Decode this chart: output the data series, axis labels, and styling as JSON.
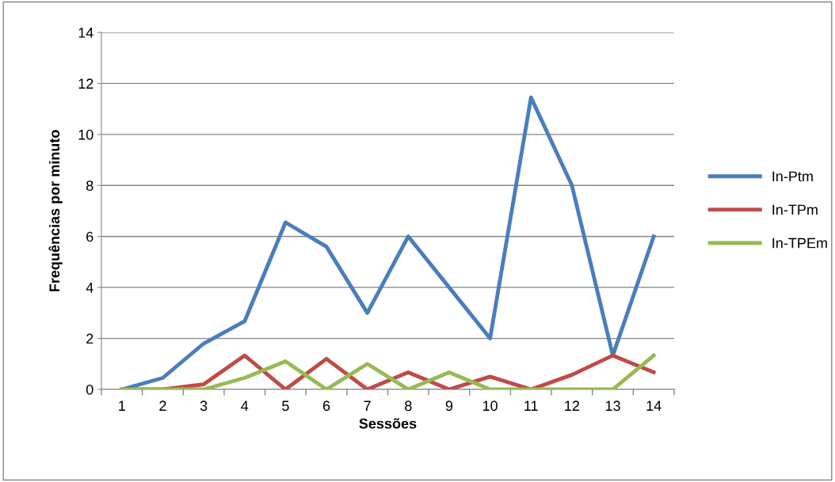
{
  "chart_data": {
    "type": "line",
    "xlabel": "Sessões",
    "ylabel": "Frequências por minuto",
    "categories": [
      "1",
      "2",
      "3",
      "4",
      "5",
      "6",
      "7",
      "8",
      "9",
      "10",
      "11",
      "12",
      "13",
      "14"
    ],
    "series": [
      {
        "name": "In-Ptm",
        "color": "#4a7ebb",
        "values": [
          0,
          0.45,
          1.8,
          2.67,
          6.55,
          5.6,
          3,
          6,
          4,
          2,
          11.45,
          8,
          1.33,
          6
        ]
      },
      {
        "name": "In-TPm",
        "color": "#be4b48",
        "values": [
          0,
          0,
          0.2,
          1.33,
          0,
          1.2,
          0,
          0.67,
          0,
          0.5,
          0,
          0.57,
          1.33,
          0.67
        ]
      },
      {
        "name": "In-TPEm",
        "color": "#98b954",
        "values": [
          0,
          0,
          0,
          0.45,
          1.1,
          0,
          1,
          0,
          0.67,
          0,
          0,
          0,
          0,
          1.33
        ]
      }
    ],
    "ylim": [
      0,
      14
    ],
    "yticks": [
      0,
      2,
      4,
      6,
      8,
      10,
      12,
      14
    ],
    "grid": "y",
    "legend": "right",
    "marker": "none",
    "line_style": "solid"
  }
}
